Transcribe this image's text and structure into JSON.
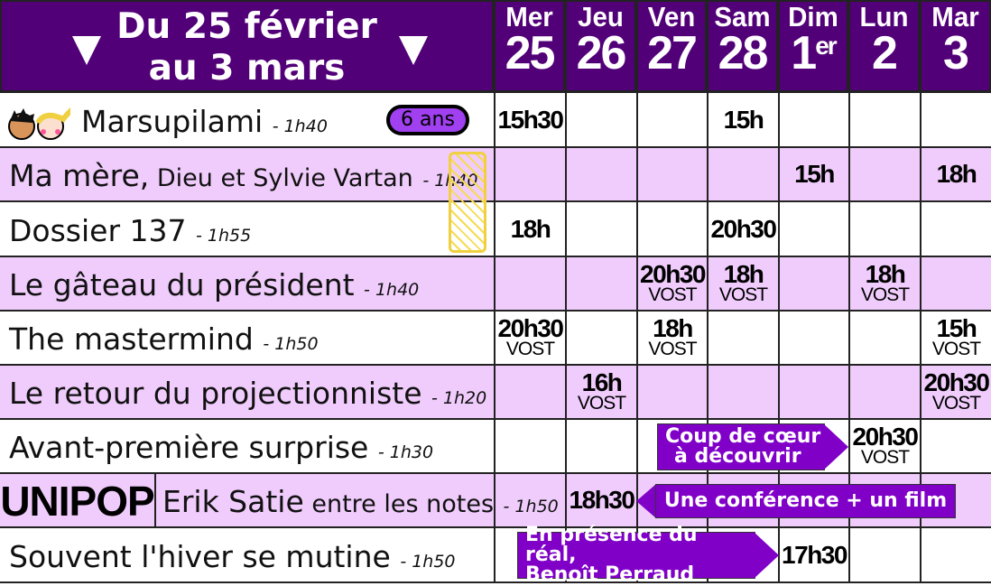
{
  "header": {
    "title_line1": "Du 25 février",
    "title_line2": "au 3 mars",
    "days": [
      {
        "name": "Mer",
        "date": "25"
      },
      {
        "name": "Jeu",
        "date": "26"
      },
      {
        "name": "Ven",
        "date": "27"
      },
      {
        "name": "Sam",
        "date": "28"
      },
      {
        "name": "Dim",
        "date": "1",
        "sup": "er"
      },
      {
        "name": "Lun",
        "date": "2"
      },
      {
        "name": "Mar",
        "date": "3"
      }
    ]
  },
  "colors": {
    "header": "#520078",
    "pink_row": "#f0ccfc",
    "banner": "#8000c8"
  },
  "badge": {
    "label": "6 ans",
    "icon": "kids-faces-icon"
  },
  "unipop_label": "UNIPOP",
  "films": [
    {
      "title": "Marsupilami",
      "duration": "- 1h40",
      "shows": {
        "0": [
          "15h30"
        ],
        "3": [
          "15h"
        ]
      }
    },
    {
      "title": "Ma mère,",
      "title_small": " Dieu et Sylvie Vartan",
      "duration": "- 1h40",
      "shows": {
        "4": [
          "15h"
        ],
        "6": [
          "18h"
        ]
      }
    },
    {
      "title": "Dossier 137",
      "duration": "- 1h55",
      "shows": {
        "0": [
          "18h"
        ],
        "3": [
          "20h30"
        ]
      }
    },
    {
      "title": "Le gâteau du président",
      "duration": "- 1h40",
      "shows": {
        "2": [
          "20h30",
          "VOST"
        ],
        "3": [
          "18h",
          "VOST"
        ],
        "5": [
          "18h",
          "VOST"
        ]
      }
    },
    {
      "title": "The mastermind",
      "duration": "- 1h50",
      "shows": {
        "0": [
          "20h30",
          "VOST"
        ],
        "2": [
          "18h",
          "VOST"
        ],
        "6": [
          "15h",
          "VOST"
        ]
      }
    },
    {
      "title": "Le retour du projectionniste",
      "duration": "- 1h20",
      "shows": {
        "1": [
          "16h",
          "VOST"
        ],
        "6": [
          "20h30",
          "VOST"
        ]
      }
    },
    {
      "title": "Avant-première surprise",
      "duration": "- 1h30",
      "shows": {
        "5": [
          "20h30",
          "VOST"
        ]
      }
    },
    {
      "title": "Erik Satie",
      "title_small": " entre les notes",
      "duration": "- 1h50",
      "shows": {
        "1": [
          "18h30"
        ]
      }
    },
    {
      "title": "Souvent l'hiver se mutine",
      "duration": "- 1h50",
      "shows": {
        "4": [
          "17h30"
        ]
      }
    }
  ],
  "banners": [
    {
      "line1": "Coup de cœur",
      "line2": "à découvrir"
    },
    {
      "line1": "Une conférence + un film"
    },
    {
      "line1": "En présence du réal,",
      "line2": "Benoît Perraud"
    }
  ]
}
